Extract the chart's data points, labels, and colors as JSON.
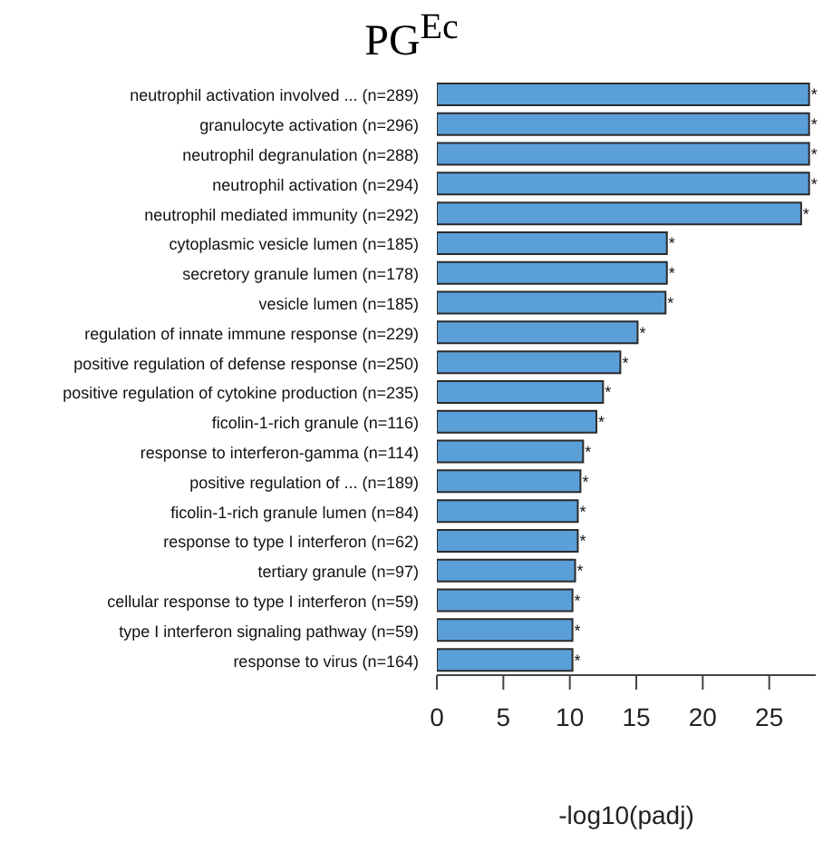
{
  "chart_data": {
    "type": "bar",
    "orientation": "horizontal",
    "title": "PG$^{Ec}$",
    "xlabel": "-log10(padj)",
    "categories": [
      "neutrophil activation involved ... (n=289)",
      "granulocyte activation (n=296)",
      "neutrophil degranulation (n=288)",
      "neutrophil activation (n=294)",
      "neutrophil mediated immunity (n=292)",
      "cytoplasmic vesicle lumen (n=185)",
      "secretory granule lumen (n=178)",
      "vesicle lumen (n=185)",
      "regulation of innate immune response (n=229)",
      "positive regulation of defense response (n=250)",
      "positive regulation of cytokine production (n=235)",
      "ficolin-1-rich granule (n=116)",
      "response to interferon-gamma (n=114)",
      "positive regulation of ... (n=189)",
      "ficolin-1-rich granule lumen (n=84)",
      "response to type I interferon (n=62)",
      "tertiary granule (n=97)",
      "cellular response to type I interferon (n=59)",
      "type I interferon signaling pathway (n=59)",
      "response to virus (n=164)"
    ],
    "values": [
      28.0,
      28.0,
      28.0,
      28.0,
      27.4,
      17.3,
      17.3,
      17.2,
      15.1,
      13.8,
      12.5,
      12.0,
      11.0,
      10.8,
      10.6,
      10.6,
      10.4,
      10.2,
      10.2,
      10.2
    ],
    "value_labels": [
      "*",
      "*",
      "*",
      "*",
      "*",
      "*",
      "*",
      "*",
      "*",
      "*",
      "*",
      "*",
      "*",
      "*",
      "*",
      "*",
      "*",
      "*",
      "*",
      "*"
    ],
    "color": "#5b9fd8",
    "xlim": [
      0,
      28.5
    ],
    "xticks": [
      0,
      5,
      10,
      15,
      20,
      25
    ],
    "grid": false,
    "legend": false
  }
}
